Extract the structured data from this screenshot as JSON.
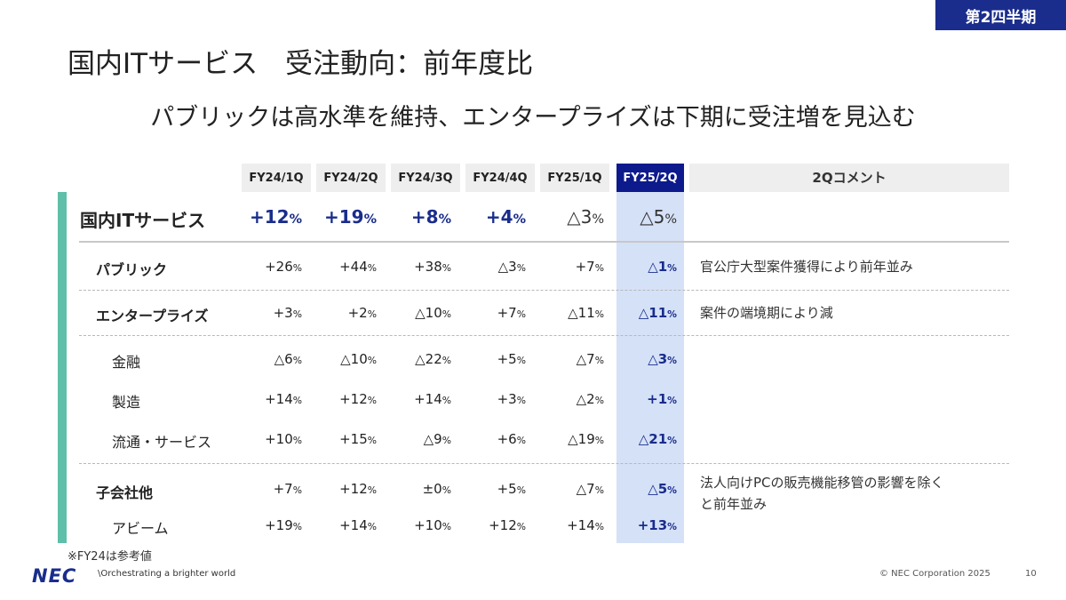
{
  "badge": "第2四半期",
  "title": "国内ITサービス　受注動向：前年度比",
  "subtitle": "パブリックは高水準を維持、エンタープライズは下期に受注増を見込む",
  "columns": [
    "FY24/1Q",
    "FY24/2Q",
    "FY24/3Q",
    "FY24/4Q",
    "FY25/1Q",
    "FY25/2Q"
  ],
  "comment_header": "2QコメントI",
  "rows": [
    {
      "label": "国内ITサービス",
      "values": [
        "+12",
        "+19",
        "+8",
        "+4",
        "△3",
        "△5"
      ],
      "comment": ""
    },
    {
      "label": "パブリック",
      "values": [
        "+26",
        "+44",
        "+38",
        "△3",
        "+7",
        "△1"
      ],
      "comment": "官公庁大型案件獲得により前年並み"
    },
    {
      "label": "エンタープライズ",
      "values": [
        "+3",
        "+2",
        "△10",
        "+7",
        "△11",
        "△11"
      ],
      "comment": "案件の端境期により減"
    },
    {
      "label": "金融",
      "values": [
        "△6",
        "△10",
        "△22",
        "+5",
        "△7",
        "△3"
      ],
      "comment": ""
    },
    {
      "label": "製造",
      "values": [
        "+14",
        "+12",
        "+14",
        "+3",
        "△2",
        "+1"
      ],
      "comment": ""
    },
    {
      "label": "流通・サービス",
      "values": [
        "+10",
        "+15",
        "△9",
        "+6",
        "△19",
        "△21"
      ],
      "comment": ""
    },
    {
      "label": "子会社他",
      "values": [
        "+7",
        "+12",
        "±0",
        "+5",
        "△7",
        "△5"
      ],
      "comment": "法人向けPCの販売機能移管の影響を除く"
    },
    {
      "label": "アビーム",
      "values": [
        "+19",
        "+14",
        "+10",
        "+12",
        "+14",
        "+13"
      ],
      "comment": ""
    }
  ],
  "comment_line2": "と前年並み",
  "unit": "%",
  "note": "※FY24は参考値",
  "logo": "NEC",
  "tagline": "\\Orchestrating a brighter world",
  "copyright": "© NEC Corporation 2025",
  "page_number": "10"
}
